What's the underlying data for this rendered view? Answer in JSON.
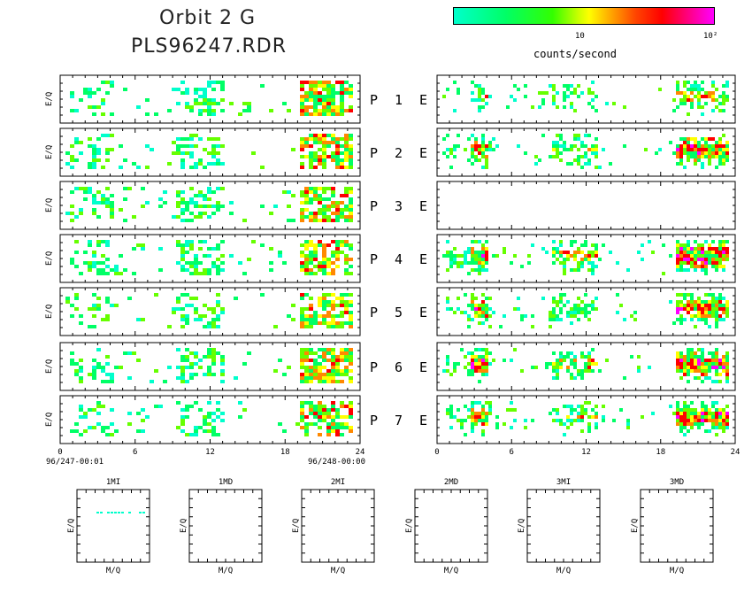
{
  "header": {
    "title_line1": "Orbit 2 G",
    "title_line2": "PLS96247.RDR"
  },
  "colorbar": {
    "colors": [
      "#00ffcc",
      "#00ff00",
      "#ffff00",
      "#ff0000",
      "#ff00ff"
    ],
    "tick_labels": [
      "10",
      "10²"
    ],
    "label": "counts/second"
  },
  "chart_data": {
    "type": "heatmap",
    "x_ticks": [
      "0",
      "6",
      "12",
      "18",
      "24"
    ],
    "xlim": [
      0,
      24
    ],
    "ylabel": "E/Q",
    "left_time_start": "96/247-00:01",
    "left_time_end": "96/248-00:00",
    "rows": [
      {
        "label": "P 1 E",
        "left_intensity": 0.55,
        "right_intensity": 0.35,
        "right_empty": false
      },
      {
        "label": "P 2 E",
        "left_intensity": 0.5,
        "right_intensity": 0.8,
        "right_empty": false
      },
      {
        "label": "P 3 E",
        "left_intensity": 0.5,
        "right_intensity": 0,
        "right_empty": true
      },
      {
        "label": "P 4 E",
        "left_intensity": 0.45,
        "right_intensity": 0.95,
        "right_empty": false
      },
      {
        "label": "P 5 E",
        "left_intensity": 0.4,
        "right_intensity": 0.7,
        "right_empty": false
      },
      {
        "label": "P 6 E",
        "left_intensity": 0.5,
        "right_intensity": 0.85,
        "right_empty": false
      },
      {
        "label": "P 7 E",
        "left_intensity": 0.45,
        "right_intensity": 0.75,
        "right_empty": false
      }
    ],
    "mass_panels": [
      {
        "title": "1MI",
        "xlabel": "M/Q",
        "ylabel": "E/Q",
        "has_data": true
      },
      {
        "title": "1MD",
        "xlabel": "M/Q",
        "ylabel": "E/Q",
        "has_data": false
      },
      {
        "title": "2MI",
        "xlabel": "M/Q",
        "ylabel": "E/Q",
        "has_data": false
      },
      {
        "title": "2MD",
        "xlabel": "M/Q",
        "ylabel": "E/Q",
        "has_data": false
      },
      {
        "title": "3MI",
        "xlabel": "M/Q",
        "ylabel": "E/Q",
        "has_data": false
      },
      {
        "title": "3MD",
        "xlabel": "M/Q",
        "ylabel": "E/Q",
        "has_data": false
      }
    ]
  }
}
